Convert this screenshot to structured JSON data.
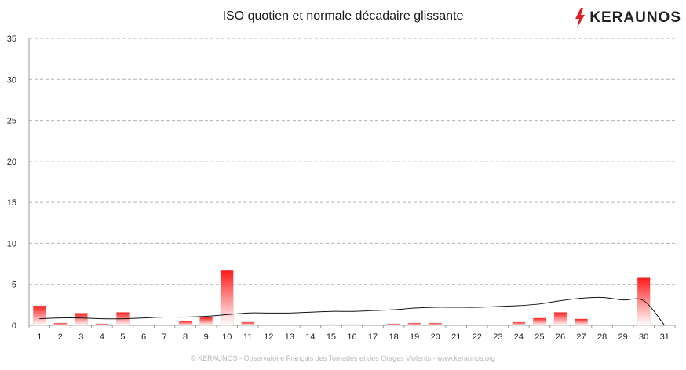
{
  "chart_data": {
    "type": "bar",
    "title": "ISO quotien et normale décadaire glissante",
    "xlabel": "",
    "ylabel": "",
    "ylim": [
      0,
      35
    ],
    "yticks": [
      0,
      5,
      10,
      15,
      20,
      25,
      30,
      35
    ],
    "grid": true,
    "categories": [
      "1",
      "2",
      "3",
      "4",
      "5",
      "6",
      "7",
      "8",
      "9",
      "10",
      "11",
      "12",
      "13",
      "14",
      "15",
      "16",
      "17",
      "18",
      "19",
      "20",
      "21",
      "22",
      "23",
      "24",
      "25",
      "26",
      "27",
      "28",
      "29",
      "30",
      "31"
    ],
    "series": [
      {
        "kind": "bar",
        "values": [
          2.4,
          0.3,
          1.5,
          0.2,
          1.6,
          0,
          0,
          0.5,
          1.0,
          6.7,
          0.4,
          0,
          0,
          0,
          0.1,
          0.1,
          0,
          0.2,
          0.3,
          0.3,
          0,
          0,
          0,
          0.4,
          0.9,
          1.6,
          0.8,
          0,
          0,
          5.8,
          0
        ]
      },
      {
        "kind": "line",
        "values": [
          0.8,
          0.9,
          0.9,
          0.8,
          0.8,
          0.9,
          1.0,
          1.0,
          1.1,
          1.3,
          1.5,
          1.5,
          1.5,
          1.6,
          1.7,
          1.7,
          1.8,
          1.9,
          2.1,
          2.2,
          2.2,
          2.2,
          2.3,
          2.4,
          2.6,
          3.0,
          3.3,
          3.4,
          3.1,
          3.0,
          0.0
        ]
      }
    ],
    "colors": {
      "bar_top": "#ff1a1a",
      "bar_bottom": "#ffffff",
      "line": "#111111",
      "grid": "#b4b4b4"
    }
  },
  "brand": {
    "name": "KERAUNOS",
    "icon": "lightning-bolt-icon",
    "icon_color": "#e02020"
  },
  "footer": "© KERAUNOS - Observatoire Français des Tornades et des Orages Violents - www.keraunos.org"
}
